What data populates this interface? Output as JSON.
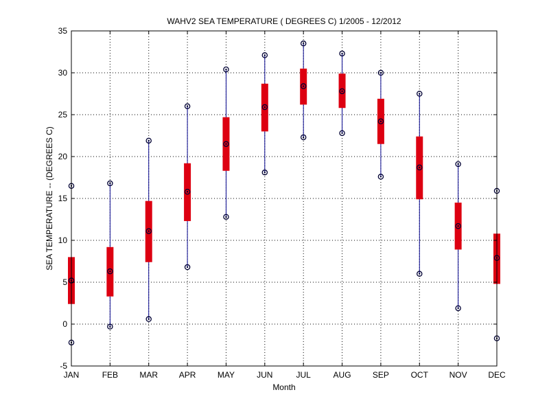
{
  "chart_data": {
    "type": "box",
    "title": "WAHV2  SEA TEMPERATURE ( DEGREES C) 1/2005 - 12/2012",
    "xlabel": "Month",
    "ylabel": "SEA TEMPERATURE -- (DEGREES C)",
    "ylim": [
      -5,
      35
    ],
    "yticks": [
      -5,
      0,
      5,
      10,
      15,
      20,
      25,
      30,
      35
    ],
    "grid": true,
    "categories": [
      "JAN",
      "FEB",
      "MAR",
      "APR",
      "MAY",
      "JUN",
      "JUL",
      "AUG",
      "SEP",
      "OCT",
      "NOV",
      "DEC"
    ],
    "series": [
      {
        "name": "min",
        "values": [
          -2.2,
          -0.3,
          0.6,
          6.8,
          12.8,
          18.1,
          22.3,
          22.8,
          17.6,
          6.0,
          1.9,
          -1.7
        ]
      },
      {
        "name": "q1",
        "values": [
          2.4,
          3.3,
          7.4,
          12.3,
          18.3,
          23.0,
          26.2,
          25.8,
          21.5,
          14.9,
          8.9,
          4.8
        ]
      },
      {
        "name": "median",
        "values": [
          5.2,
          6.3,
          11.1,
          15.8,
          21.5,
          25.9,
          28.4,
          27.8,
          24.2,
          18.7,
          11.7,
          7.9
        ]
      },
      {
        "name": "q3",
        "values": [
          8.0,
          9.2,
          14.7,
          19.2,
          24.7,
          28.7,
          30.5,
          29.9,
          26.9,
          22.4,
          14.5,
          10.8
        ]
      },
      {
        "name": "max",
        "values": [
          16.5,
          16.8,
          21.9,
          26.0,
          30.4,
          32.1,
          33.5,
          32.3,
          30.0,
          27.5,
          19.1,
          15.9
        ]
      }
    ]
  }
}
